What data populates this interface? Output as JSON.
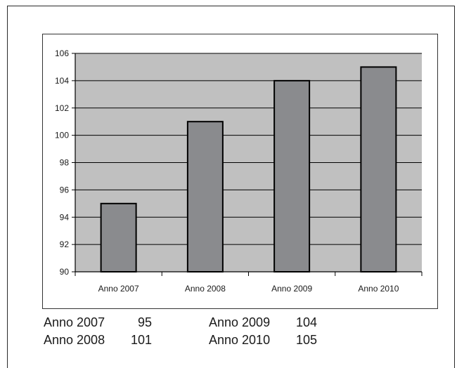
{
  "chart_data": {
    "type": "bar",
    "title": "",
    "xlabel": "",
    "ylabel": "",
    "categories": [
      "Anno 2007",
      "Anno 2008",
      "Anno 2009",
      "Anno 2010"
    ],
    "series": [
      {
        "values": [
          95,
          101,
          104,
          105
        ],
        "color": "#8a8b8e"
      }
    ],
    "ylim": [
      90,
      106
    ],
    "yticks": [
      "90",
      "92",
      "94",
      "96",
      "98",
      "100",
      "102",
      "104",
      "106"
    ],
    "grid": true,
    "legend": "none",
    "plot_background": "#c0c0c0",
    "gridline_color": "#000000",
    "bar_outline_color": "#000000"
  },
  "summary": {
    "rows": [
      {
        "label": "Anno 2007",
        "value": "95"
      },
      {
        "label": "Anno 2008",
        "value": "101"
      },
      {
        "label": "Anno 2009",
        "value": "104"
      },
      {
        "label": "Anno 2010",
        "value": "105"
      }
    ]
  }
}
